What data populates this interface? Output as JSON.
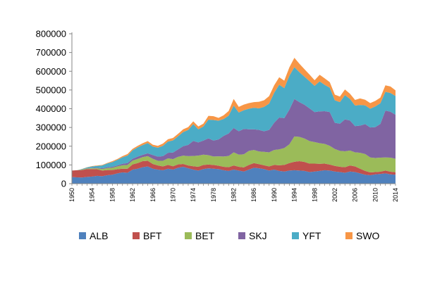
{
  "chart_data": {
    "type": "area",
    "stacked": true,
    "x_tick_labels": [
      "1950",
      "1954",
      "1958",
      "1962",
      "1966",
      "1970",
      "1974",
      "1978",
      "1982",
      "1986",
      "1990",
      "1994",
      "1998",
      "2002",
      "2006",
      "2010",
      "2014"
    ],
    "y_tick_labels": [
      "0",
      "100000",
      "200000",
      "300000",
      "400000",
      "500000",
      "600000",
      "700000",
      "800000"
    ],
    "ylim": [
      0,
      800000
    ],
    "xlim": [
      1950,
      2014
    ],
    "grid": false,
    "legend_position": "bottom",
    "x": [
      1950,
      1951,
      1952,
      1953,
      1954,
      1955,
      1956,
      1957,
      1958,
      1959,
      1960,
      1961,
      1962,
      1963,
      1964,
      1965,
      1966,
      1967,
      1968,
      1969,
      1970,
      1971,
      1972,
      1973,
      1974,
      1975,
      1976,
      1977,
      1978,
      1979,
      1980,
      1981,
      1982,
      1983,
      1984,
      1985,
      1986,
      1987,
      1988,
      1989,
      1990,
      1991,
      1992,
      1993,
      1994,
      1995,
      1996,
      1997,
      1998,
      1999,
      2000,
      2001,
      2002,
      2003,
      2004,
      2005,
      2006,
      2007,
      2008,
      2009,
      2010,
      2011,
      2012,
      2013,
      2014
    ],
    "series": [
      {
        "name": "ALB",
        "color": "#4F81BD",
        "values": [
          35000,
          34000,
          33000,
          36000,
          38000,
          42000,
          40000,
          45000,
          48000,
          55000,
          60000,
          58000,
          75000,
          80000,
          88000,
          92000,
          80000,
          75000,
          72000,
          80000,
          75000,
          85000,
          90000,
          82000,
          75000,
          70000,
          78000,
          82000,
          80000,
          78000,
          72000,
          68000,
          75000,
          70000,
          65000,
          75000,
          85000,
          82000,
          78000,
          70000,
          75000,
          68000,
          65000,
          70000,
          72000,
          70000,
          68000,
          62000,
          65000,
          68000,
          72000,
          70000,
          65000,
          62000,
          58000,
          65000,
          62000,
          55000,
          48000,
          45000,
          50000,
          52000,
          55000,
          50000,
          48000
        ]
      },
      {
        "name": "BFT",
        "color": "#C0504D",
        "values": [
          35000,
          38000,
          40000,
          42000,
          40000,
          35000,
          30000,
          28000,
          25000,
          22000,
          20000,
          22000,
          28000,
          30000,
          32000,
          30000,
          25000,
          22000,
          20000,
          20000,
          18000,
          18000,
          15000,
          15000,
          18000,
          20000,
          22000,
          20000,
          20000,
          18000,
          18000,
          20000,
          22000,
          20000,
          22000,
          25000,
          25000,
          22000,
          20000,
          22000,
          25000,
          30000,
          35000,
          40000,
          45000,
          50000,
          48000,
          45000,
          42000,
          38000,
          35000,
          32000,
          30000,
          28000,
          30000,
          32000,
          30000,
          25000,
          20000,
          15000,
          12000,
          12000,
          15000,
          14000,
          13000
        ]
      },
      {
        "name": "BET",
        "color": "#9BBB59",
        "values": [
          0,
          0,
          2000,
          3000,
          4000,
          5000,
          8000,
          10000,
          12000,
          15000,
          18000,
          20000,
          20000,
          22000,
          22000,
          25000,
          28000,
          25000,
          30000,
          35000,
          38000,
          40000,
          45000,
          50000,
          55000,
          60000,
          55000,
          50000,
          45000,
          50000,
          55000,
          60000,
          70000,
          65000,
          70000,
          75000,
          70000,
          68000,
          72000,
          75000,
          80000,
          85000,
          90000,
          100000,
          135000,
          130000,
          125000,
          120000,
          115000,
          110000,
          105000,
          100000,
          90000,
          85000,
          85000,
          80000,
          75000,
          85000,
          90000,
          80000,
          75000,
          75000,
          70000,
          75000,
          72000
        ]
      },
      {
        "name": "SKJ",
        "color": "#8064A2",
        "values": [
          0,
          0,
          0,
          1000,
          2000,
          3000,
          4000,
          5000,
          5000,
          5000,
          8000,
          10000,
          10000,
          12000,
          12000,
          15000,
          20000,
          22000,
          25000,
          30000,
          35000,
          40000,
          50000,
          60000,
          80000,
          70000,
          75000,
          90000,
          85000,
          90000,
          110000,
          120000,
          130000,
          125000,
          135000,
          115000,
          110000,
          115000,
          110000,
          120000,
          145000,
          170000,
          160000,
          185000,
          200000,
          185000,
          180000,
          175000,
          160000,
          170000,
          175000,
          180000,
          140000,
          145000,
          170000,
          160000,
          140000,
          145000,
          160000,
          160000,
          165000,
          180000,
          250000,
          245000,
          235000
        ]
      },
      {
        "name": "YFT",
        "color": "#4BACC6",
        "values": [
          0,
          0,
          3000,
          5000,
          8000,
          10000,
          15000,
          20000,
          25000,
          30000,
          35000,
          40000,
          45000,
          50000,
          52000,
          55000,
          45000,
          48000,
          55000,
          60000,
          65000,
          70000,
          75000,
          80000,
          90000,
          70000,
          75000,
          100000,
          110000,
          100000,
          90000,
          95000,
          120000,
          100000,
          100000,
          110000,
          115000,
          115000,
          130000,
          140000,
          160000,
          175000,
          160000,
          180000,
          170000,
          160000,
          150000,
          145000,
          140000,
          160000,
          140000,
          130000,
          120000,
          115000,
          130000,
          115000,
          110000,
          110000,
          100000,
          100000,
          110000,
          110000,
          100000,
          100000,
          100000
        ]
      },
      {
        "name": "SWO",
        "color": "#F79646",
        "values": [
          0,
          0,
          1000,
          1000,
          2000,
          2000,
          3000,
          3000,
          5000,
          5000,
          6000,
          8000,
          8000,
          8000,
          10000,
          10000,
          10000,
          10000,
          12000,
          12000,
          13000,
          13000,
          15000,
          15000,
          15000,
          15000,
          15000,
          20000,
          20000,
          15000,
          20000,
          25000,
          35000,
          30000,
          30000,
          30000,
          30000,
          35000,
          35000,
          40000,
          40000,
          40000,
          40000,
          45000,
          50000,
          45000,
          40000,
          35000,
          30000,
          35000,
          35000,
          30000,
          30000,
          30000,
          30000,
          28000,
          30000,
          35000,
          30000,
          30000,
          30000,
          30000,
          35000,
          35000,
          30000
        ]
      }
    ]
  }
}
